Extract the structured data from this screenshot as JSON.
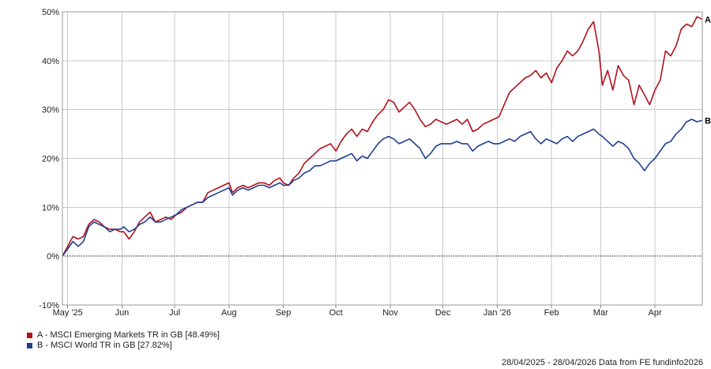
{
  "chart_data": {
    "type": "line",
    "title": "",
    "xlabel": "",
    "ylabel": "",
    "ylim": [
      -10,
      50
    ],
    "y_ticks": [
      -10,
      0,
      10,
      20,
      30,
      40,
      50
    ],
    "y_tick_labels": [
      "-10%",
      "0%",
      "10%",
      "20%",
      "30%",
      "40%",
      "50%"
    ],
    "x_range": [
      "2025-04-28",
      "2026-04-28"
    ],
    "x_ticks": [
      {
        "date": "2025-05-01",
        "label": "May '25"
      },
      {
        "date": "2025-06-01",
        "label": "Jun"
      },
      {
        "date": "2025-07-01",
        "label": "Jul"
      },
      {
        "date": "2025-08-01",
        "label": "Aug"
      },
      {
        "date": "2025-09-01",
        "label": "Sep"
      },
      {
        "date": "2025-10-01",
        "label": "Oct"
      },
      {
        "date": "2025-11-01",
        "label": "Nov"
      },
      {
        "date": "2025-12-01",
        "label": "Dec"
      },
      {
        "date": "2026-01-01",
        "label": "Jan '26"
      },
      {
        "date": "2026-02-01",
        "label": "Feb"
      },
      {
        "date": "2026-03-01",
        "label": "Mar"
      },
      {
        "date": "2026-04-01",
        "label": "Apr"
      }
    ],
    "grid": true,
    "legend_position": "bottom-left",
    "series": [
      {
        "marker": "A",
        "legend_label": "A - MSCI Emerging Markets TR in GB [48.49%]",
        "color": "#b3101a",
        "points": [
          [
            "2025-04-28",
            0
          ],
          [
            "2025-05-01",
            2
          ],
          [
            "2025-05-04",
            4
          ],
          [
            "2025-05-07",
            3.5
          ],
          [
            "2025-05-10",
            4
          ],
          [
            "2025-05-13",
            6.5
          ],
          [
            "2025-05-16",
            7.5
          ],
          [
            "2025-05-19",
            7
          ],
          [
            "2025-05-22",
            6
          ],
          [
            "2025-05-25",
            5.5
          ],
          [
            "2025-05-28",
            5.5
          ],
          [
            "2025-05-31",
            5
          ],
          [
            "2025-06-02",
            5
          ],
          [
            "2025-06-05",
            3.5
          ],
          [
            "2025-06-08",
            5
          ],
          [
            "2025-06-11",
            7
          ],
          [
            "2025-06-14",
            8
          ],
          [
            "2025-06-17",
            9
          ],
          [
            "2025-06-20",
            7
          ],
          [
            "2025-06-23",
            7.5
          ],
          [
            "2025-06-26",
            8
          ],
          [
            "2025-06-29",
            7.5
          ],
          [
            "2025-07-02",
            8.5
          ],
          [
            "2025-07-05",
            9
          ],
          [
            "2025-07-08",
            10
          ],
          [
            "2025-07-11",
            10.5
          ],
          [
            "2025-07-14",
            11
          ],
          [
            "2025-07-17",
            11
          ],
          [
            "2025-07-20",
            13
          ],
          [
            "2025-07-23",
            13.5
          ],
          [
            "2025-07-26",
            14
          ],
          [
            "2025-07-29",
            14.5
          ],
          [
            "2025-08-01",
            15
          ],
          [
            "2025-08-03",
            13
          ],
          [
            "2025-08-06",
            14
          ],
          [
            "2025-08-09",
            14.5
          ],
          [
            "2025-08-12",
            14
          ],
          [
            "2025-08-15",
            14.5
          ],
          [
            "2025-08-18",
            15
          ],
          [
            "2025-08-21",
            15
          ],
          [
            "2025-08-24",
            14.5
          ],
          [
            "2025-08-27",
            15.5
          ],
          [
            "2025-08-30",
            16
          ],
          [
            "2025-09-01",
            15
          ],
          [
            "2025-09-04",
            14.5
          ],
          [
            "2025-09-07",
            16
          ],
          [
            "2025-09-10",
            17
          ],
          [
            "2025-09-13",
            19
          ],
          [
            "2025-09-16",
            20
          ],
          [
            "2025-09-19",
            21
          ],
          [
            "2025-09-22",
            22
          ],
          [
            "2025-09-25",
            22.5
          ],
          [
            "2025-09-28",
            23
          ],
          [
            "2025-10-01",
            21.5
          ],
          [
            "2025-10-04",
            23.5
          ],
          [
            "2025-10-07",
            25
          ],
          [
            "2025-10-10",
            26
          ],
          [
            "2025-10-13",
            24.5
          ],
          [
            "2025-10-16",
            26
          ],
          [
            "2025-10-19",
            25.5
          ],
          [
            "2025-10-22",
            27.5
          ],
          [
            "2025-10-25",
            29
          ],
          [
            "2025-10-28",
            30
          ],
          [
            "2025-10-31",
            32
          ],
          [
            "2025-11-03",
            31.5
          ],
          [
            "2025-11-06",
            29.5
          ],
          [
            "2025-11-09",
            30.5
          ],
          [
            "2025-11-12",
            31.5
          ],
          [
            "2025-11-15",
            30
          ],
          [
            "2025-11-18",
            28
          ],
          [
            "2025-11-21",
            26.5
          ],
          [
            "2025-11-24",
            27
          ],
          [
            "2025-11-27",
            28
          ],
          [
            "2025-11-30",
            27.5
          ],
          [
            "2025-12-03",
            27
          ],
          [
            "2025-12-06",
            27.5
          ],
          [
            "2025-12-09",
            28
          ],
          [
            "2025-12-12",
            27
          ],
          [
            "2025-12-15",
            28
          ],
          [
            "2025-12-18",
            25.5
          ],
          [
            "2025-12-21",
            26
          ],
          [
            "2025-12-24",
            27
          ],
          [
            "2025-12-27",
            27.5
          ],
          [
            "2025-12-30",
            28
          ],
          [
            "2026-01-02",
            28.5
          ],
          [
            "2026-01-05",
            31
          ],
          [
            "2026-01-08",
            33.5
          ],
          [
            "2026-01-11",
            34.5
          ],
          [
            "2026-01-14",
            35.5
          ],
          [
            "2026-01-17",
            36.5
          ],
          [
            "2026-01-20",
            37
          ],
          [
            "2026-01-23",
            38
          ],
          [
            "2026-01-26",
            36.5
          ],
          [
            "2026-01-29",
            37.5
          ],
          [
            "2026-02-01",
            35.5
          ],
          [
            "2026-02-04",
            38.5
          ],
          [
            "2026-02-07",
            40
          ],
          [
            "2026-02-10",
            42
          ],
          [
            "2026-02-13",
            41
          ],
          [
            "2026-02-16",
            42
          ],
          [
            "2026-02-19",
            44
          ],
          [
            "2026-02-22",
            46.5
          ],
          [
            "2026-02-25",
            48
          ],
          [
            "2026-02-28",
            42
          ],
          [
            "2026-03-02",
            35
          ],
          [
            "2026-03-05",
            38
          ],
          [
            "2026-03-08",
            34
          ],
          [
            "2026-03-11",
            39
          ],
          [
            "2026-03-14",
            37
          ],
          [
            "2026-03-17",
            36
          ],
          [
            "2026-03-20",
            31
          ],
          [
            "2026-03-23",
            35
          ],
          [
            "2026-03-26",
            33
          ],
          [
            "2026-03-29",
            31
          ],
          [
            "2026-04-01",
            34
          ],
          [
            "2026-04-04",
            36
          ],
          [
            "2026-04-07",
            42
          ],
          [
            "2026-04-10",
            41
          ],
          [
            "2026-04-13",
            43
          ],
          [
            "2026-04-16",
            46.5
          ],
          [
            "2026-04-19",
            47.5
          ],
          [
            "2026-04-22",
            47
          ],
          [
            "2026-04-25",
            49
          ],
          [
            "2026-04-28",
            48.5
          ]
        ]
      },
      {
        "marker": "B",
        "legend_label": "B - MSCI World TR in GB [27.82%]",
        "color": "#1f3f93",
        "points": [
          [
            "2025-04-28",
            0
          ],
          [
            "2025-05-01",
            1.5
          ],
          [
            "2025-05-04",
            3
          ],
          [
            "2025-05-07",
            2
          ],
          [
            "2025-05-10",
            3
          ],
          [
            "2025-05-13",
            6
          ],
          [
            "2025-05-16",
            7
          ],
          [
            "2025-05-19",
            6.5
          ],
          [
            "2025-05-22",
            6
          ],
          [
            "2025-05-25",
            5
          ],
          [
            "2025-05-28",
            5.5
          ],
          [
            "2025-05-31",
            5.5
          ],
          [
            "2025-06-02",
            6
          ],
          [
            "2025-06-05",
            5
          ],
          [
            "2025-06-08",
            5.5
          ],
          [
            "2025-06-11",
            6.5
          ],
          [
            "2025-06-14",
            7
          ],
          [
            "2025-06-17",
            8
          ],
          [
            "2025-06-20",
            7
          ],
          [
            "2025-06-23",
            7
          ],
          [
            "2025-06-26",
            7.5
          ],
          [
            "2025-06-29",
            8
          ],
          [
            "2025-07-02",
            8.5
          ],
          [
            "2025-07-05",
            9.5
          ],
          [
            "2025-07-08",
            10
          ],
          [
            "2025-07-11",
            10.5
          ],
          [
            "2025-07-14",
            11
          ],
          [
            "2025-07-17",
            11
          ],
          [
            "2025-07-20",
            12
          ],
          [
            "2025-07-23",
            12.5
          ],
          [
            "2025-07-26",
            13
          ],
          [
            "2025-07-29",
            13.5
          ],
          [
            "2025-08-01",
            14
          ],
          [
            "2025-08-03",
            12.5
          ],
          [
            "2025-08-06",
            13.5
          ],
          [
            "2025-08-09",
            14
          ],
          [
            "2025-08-12",
            13.5
          ],
          [
            "2025-08-15",
            14
          ],
          [
            "2025-08-18",
            14.5
          ],
          [
            "2025-08-21",
            14.5
          ],
          [
            "2025-08-24",
            14
          ],
          [
            "2025-08-27",
            14.5
          ],
          [
            "2025-08-30",
            15
          ],
          [
            "2025-09-01",
            14.5
          ],
          [
            "2025-09-04",
            14.5
          ],
          [
            "2025-09-07",
            15.5
          ],
          [
            "2025-09-10",
            16
          ],
          [
            "2025-09-13",
            17
          ],
          [
            "2025-09-16",
            17.5
          ],
          [
            "2025-09-19",
            18.5
          ],
          [
            "2025-09-22",
            18.5
          ],
          [
            "2025-09-25",
            19
          ],
          [
            "2025-09-28",
            19.5
          ],
          [
            "2025-10-01",
            19.5
          ],
          [
            "2025-10-04",
            20
          ],
          [
            "2025-10-07",
            20.5
          ],
          [
            "2025-10-10",
            21
          ],
          [
            "2025-10-13",
            19.5
          ],
          [
            "2025-10-16",
            20.5
          ],
          [
            "2025-10-19",
            20
          ],
          [
            "2025-10-22",
            21.5
          ],
          [
            "2025-10-25",
            23
          ],
          [
            "2025-10-28",
            24
          ],
          [
            "2025-10-31",
            24.5
          ],
          [
            "2025-11-03",
            24
          ],
          [
            "2025-11-06",
            23
          ],
          [
            "2025-11-09",
            23.5
          ],
          [
            "2025-11-12",
            24
          ],
          [
            "2025-11-15",
            23
          ],
          [
            "2025-11-18",
            22
          ],
          [
            "2025-11-21",
            20
          ],
          [
            "2025-11-24",
            21
          ],
          [
            "2025-11-27",
            22.5
          ],
          [
            "2025-11-30",
            23
          ],
          [
            "2025-12-03",
            23
          ],
          [
            "2025-12-06",
            23
          ],
          [
            "2025-12-09",
            23.5
          ],
          [
            "2025-12-12",
            23
          ],
          [
            "2025-12-15",
            23
          ],
          [
            "2025-12-18",
            21.5
          ],
          [
            "2025-12-21",
            22.5
          ],
          [
            "2025-12-24",
            23
          ],
          [
            "2025-12-27",
            23.5
          ],
          [
            "2025-12-30",
            23
          ],
          [
            "2026-01-02",
            23
          ],
          [
            "2026-01-05",
            23.5
          ],
          [
            "2026-01-08",
            24
          ],
          [
            "2026-01-11",
            23.5
          ],
          [
            "2026-01-14",
            24.5
          ],
          [
            "2026-01-17",
            25
          ],
          [
            "2026-01-20",
            25.5
          ],
          [
            "2026-01-23",
            24
          ],
          [
            "2026-01-26",
            23
          ],
          [
            "2026-01-29",
            24
          ],
          [
            "2026-02-01",
            23.5
          ],
          [
            "2026-02-04",
            23
          ],
          [
            "2026-02-07",
            24
          ],
          [
            "2026-02-10",
            24.5
          ],
          [
            "2026-02-13",
            23.5
          ],
          [
            "2026-02-16",
            24.5
          ],
          [
            "2026-02-19",
            25
          ],
          [
            "2026-02-22",
            25.5
          ],
          [
            "2026-02-25",
            26
          ],
          [
            "2026-02-28",
            25
          ],
          [
            "2026-03-02",
            24.5
          ],
          [
            "2026-03-05",
            23.5
          ],
          [
            "2026-03-08",
            22.5
          ],
          [
            "2026-03-11",
            23.5
          ],
          [
            "2026-03-14",
            23
          ],
          [
            "2026-03-17",
            22
          ],
          [
            "2026-03-20",
            20
          ],
          [
            "2026-03-23",
            19
          ],
          [
            "2026-03-26",
            17.5
          ],
          [
            "2026-03-29",
            19
          ],
          [
            "2026-04-01",
            20
          ],
          [
            "2026-04-04",
            21.5
          ],
          [
            "2026-04-07",
            23
          ],
          [
            "2026-04-10",
            23.5
          ],
          [
            "2026-04-13",
            25
          ],
          [
            "2026-04-16",
            26
          ],
          [
            "2026-04-19",
            27.5
          ],
          [
            "2026-04-22",
            28
          ],
          [
            "2026-04-25",
            27.5
          ],
          [
            "2026-04-28",
            27.8
          ]
        ]
      }
    ]
  },
  "footer": {
    "date_range": "28/04/2025 - 28/04/2026",
    "source": "Data from FE fundinfo2026"
  }
}
